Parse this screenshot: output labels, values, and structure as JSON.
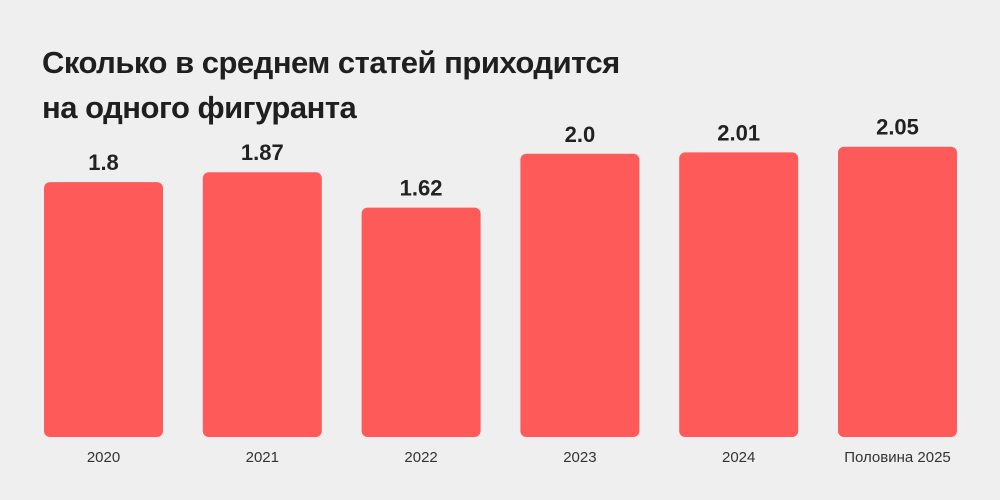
{
  "chart_data": {
    "type": "bar",
    "title_lines": [
      "Сколько в среднем статей приходится",
      "на одного фигуранта"
    ],
    "categories": [
      "2020",
      "2021",
      "2022",
      "2023",
      "2024",
      "Половина 2025"
    ],
    "values": [
      1.8,
      1.87,
      1.62,
      2.0,
      2.01,
      2.05
    ],
    "value_labels": [
      "1.8",
      "1.87",
      "1.62",
      "2.0",
      "2.01",
      "2.05"
    ],
    "xlabel": "",
    "ylabel": "",
    "ylim": [
      0,
      2.05
    ],
    "grid": false,
    "bar_color": "#ff5a5a",
    "text_color": "#222222",
    "background": "#efefef"
  }
}
